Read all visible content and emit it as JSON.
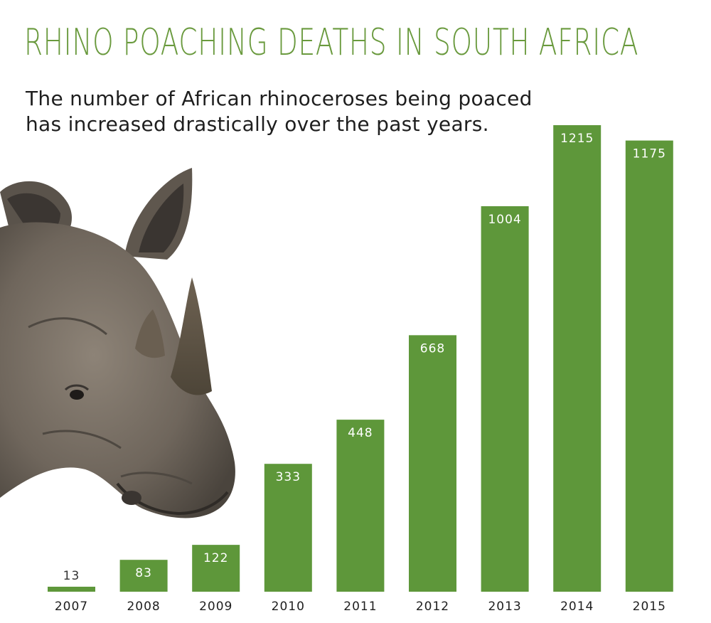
{
  "header": {
    "title": "RHINO POACHING DEATHS IN SOUTH AFRICA",
    "subtitle": "The number of African rhinoceroses being poaced has increased drastically over the past years."
  },
  "colors": {
    "bar": "#5e973a",
    "title": "#6a9a3e",
    "text": "#1e1e1e"
  },
  "image": {
    "icon": "rhino-head-photo"
  },
  "chart_data": {
    "type": "bar",
    "title": "RHINO POACHING DEATHS IN SOUTH AFRICA",
    "subtitle": "The number of African rhinoceroses being poaced has increased drastically over the past years.",
    "categories": [
      "2007",
      "2008",
      "2009",
      "2010",
      "2011",
      "2012",
      "2013",
      "2014",
      "2015"
    ],
    "values": [
      13,
      83,
      122,
      333,
      448,
      668,
      1004,
      1215,
      1175
    ],
    "xlabel": "",
    "ylabel": "",
    "ylim": [
      0,
      1215
    ],
    "grid": false,
    "data_labels": true
  }
}
